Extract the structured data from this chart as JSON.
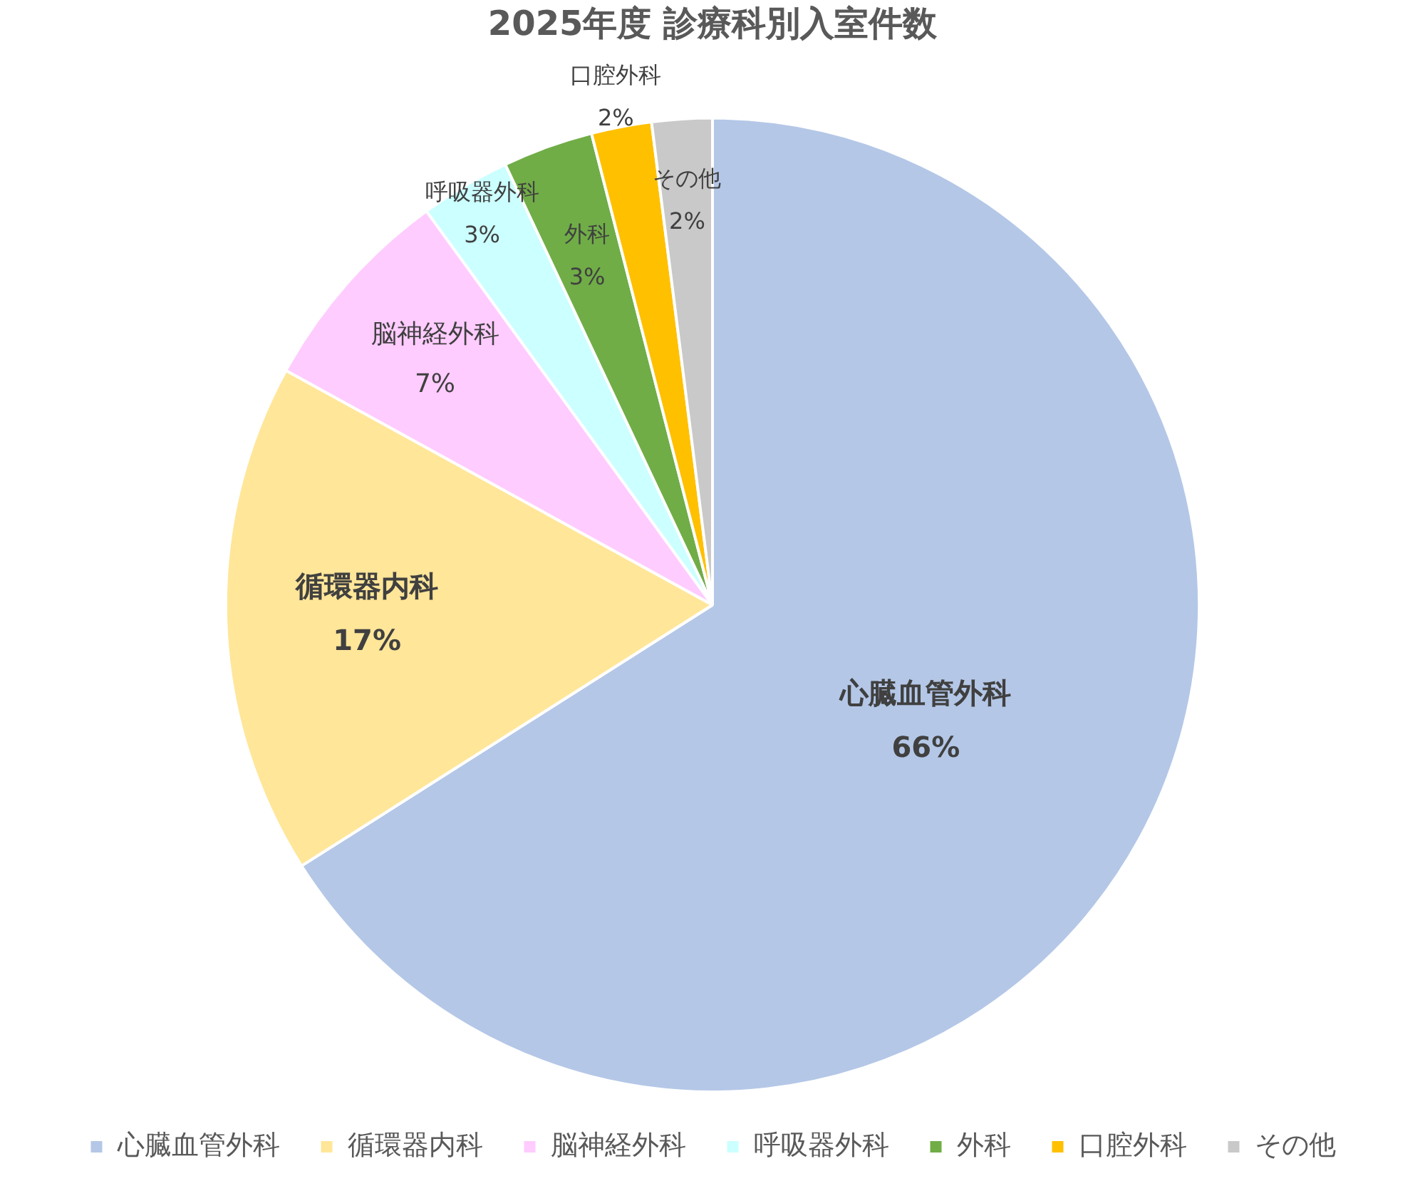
{
  "chart_data": {
    "type": "pie",
    "title": "2025年度 診療科別入室件数",
    "categories": [
      "心臓血管外科",
      "循環器内科",
      "脳神経外科",
      "呼吸器外科",
      "外科",
      "口腔外科",
      "その他"
    ],
    "values": [
      66,
      17,
      7,
      3,
      3,
      2,
      2
    ],
    "value_labels": [
      "66%",
      "17%",
      "7%",
      "3%",
      "3%",
      "2%",
      "2%"
    ],
    "colors": [
      "#b4c7e7",
      "#ffe699",
      "#ffccff",
      "#ccffff",
      "#70ad47",
      "#ffc000",
      "#c9c9c9"
    ],
    "legend": "bottom"
  }
}
